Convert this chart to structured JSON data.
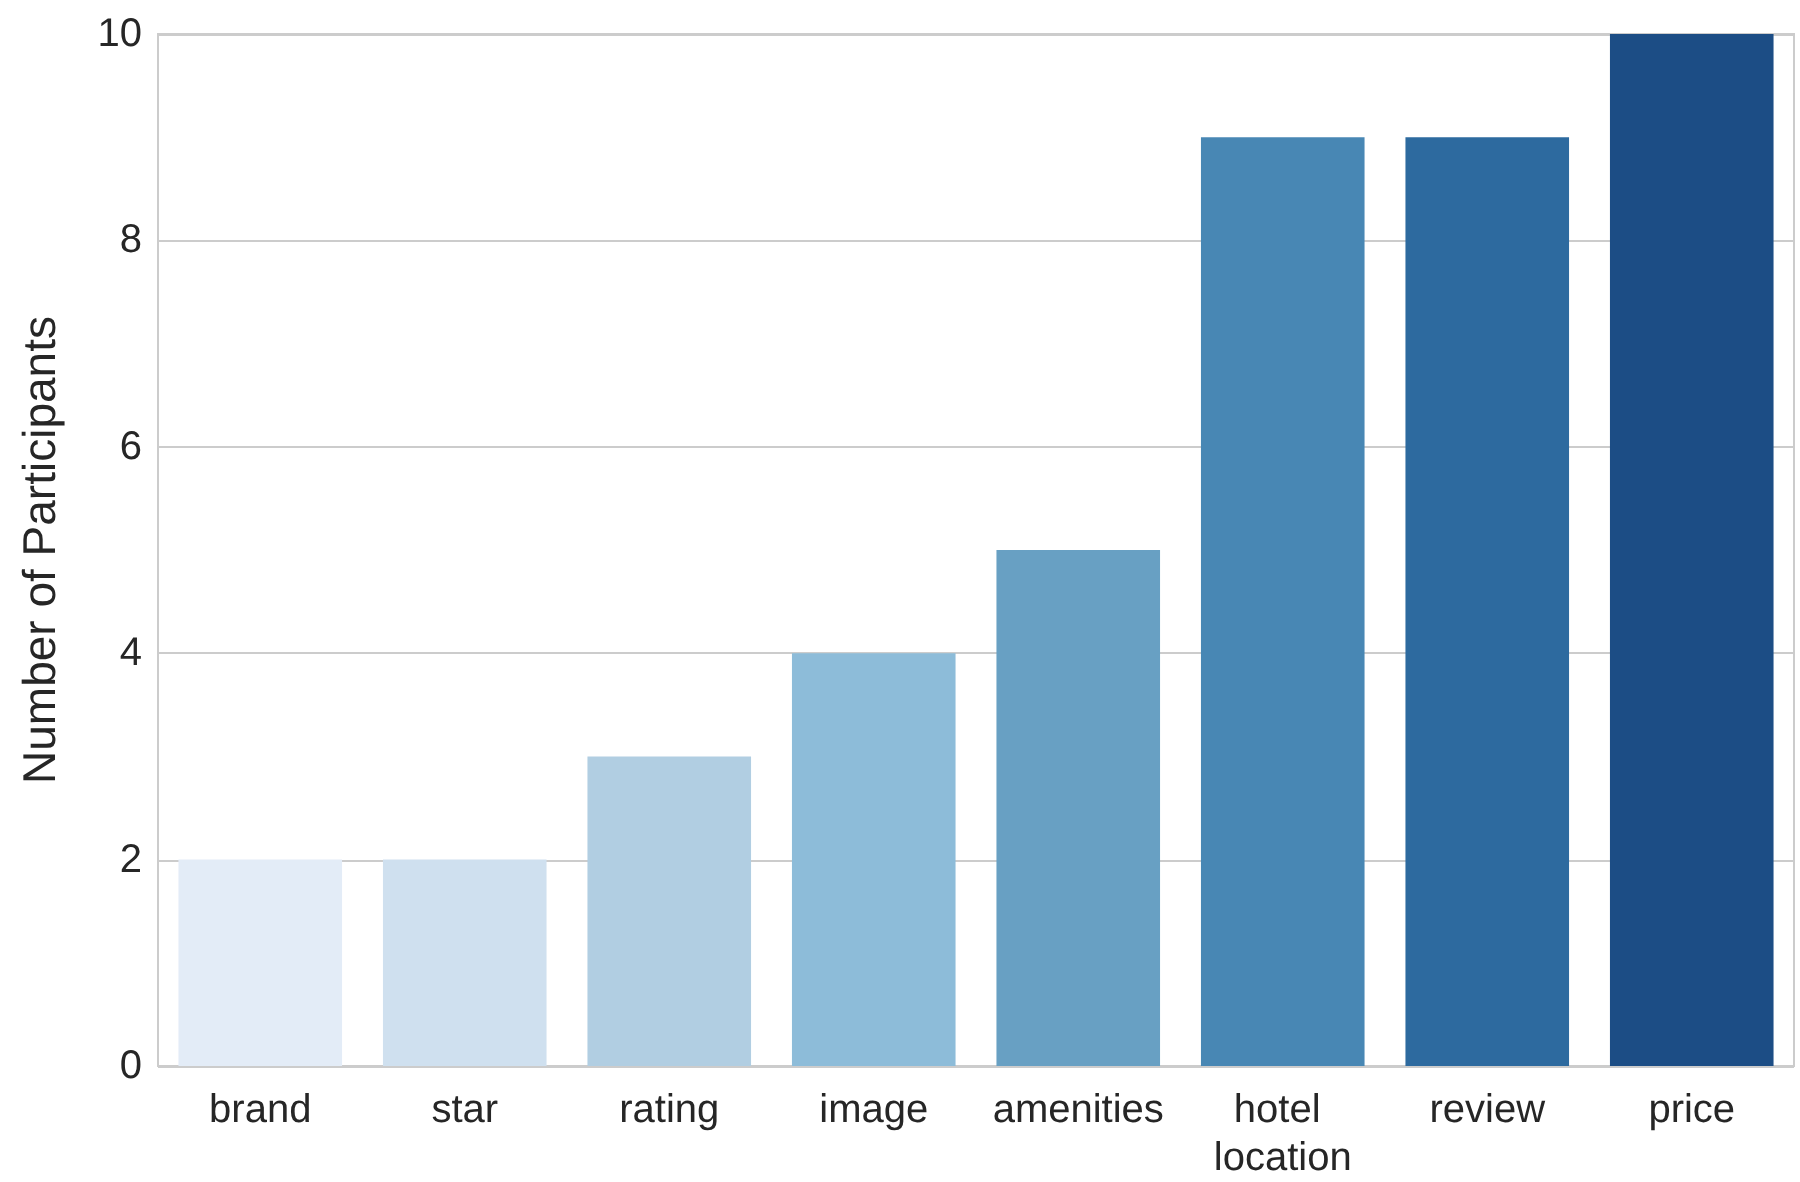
{
  "chart_data": {
    "type": "bar",
    "ylabel": "Number of Participants",
    "categories": [
      "brand",
      "star",
      "rating",
      "image",
      "amenities",
      "hotel location",
      "review",
      "price"
    ],
    "values": [
      2,
      2,
      3,
      4,
      5,
      9,
      9,
      10
    ],
    "colors": [
      "#e3ecf7",
      "#cfe0ef",
      "#b1cee2",
      "#8dbcd9",
      "#68a0c3",
      "#4887b4",
      "#2d6a9f",
      "#1c4d85"
    ],
    "ylim": [
      0,
      10
    ],
    "yticks": [
      0,
      2,
      4,
      6,
      8,
      10
    ],
    "grid": "y"
  }
}
